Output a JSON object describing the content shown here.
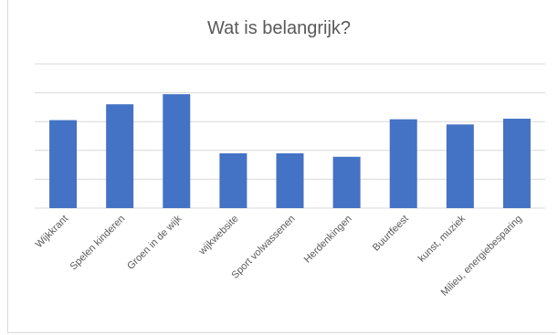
{
  "chart_data": {
    "type": "bar",
    "title": "Wat is belangrijk?",
    "categories": [
      "Wijkkrant",
      "Spelen kinderen",
      "Groen in de wijk",
      "wijkwebsite",
      "Sport volwassenen",
      "Herdenkingen",
      "Buurtfeest",
      "kunst, muziek",
      "Milieu, energiebesparing"
    ],
    "values": [
      3.05,
      3.6,
      3.95,
      1.9,
      1.9,
      1.78,
      3.08,
      2.9,
      3.1
    ],
    "ylim": [
      0,
      5
    ],
    "grid": true,
    "bar_color": "#4472C4",
    "grid_color": "#d9d9d9",
    "text_color": "#595959"
  }
}
